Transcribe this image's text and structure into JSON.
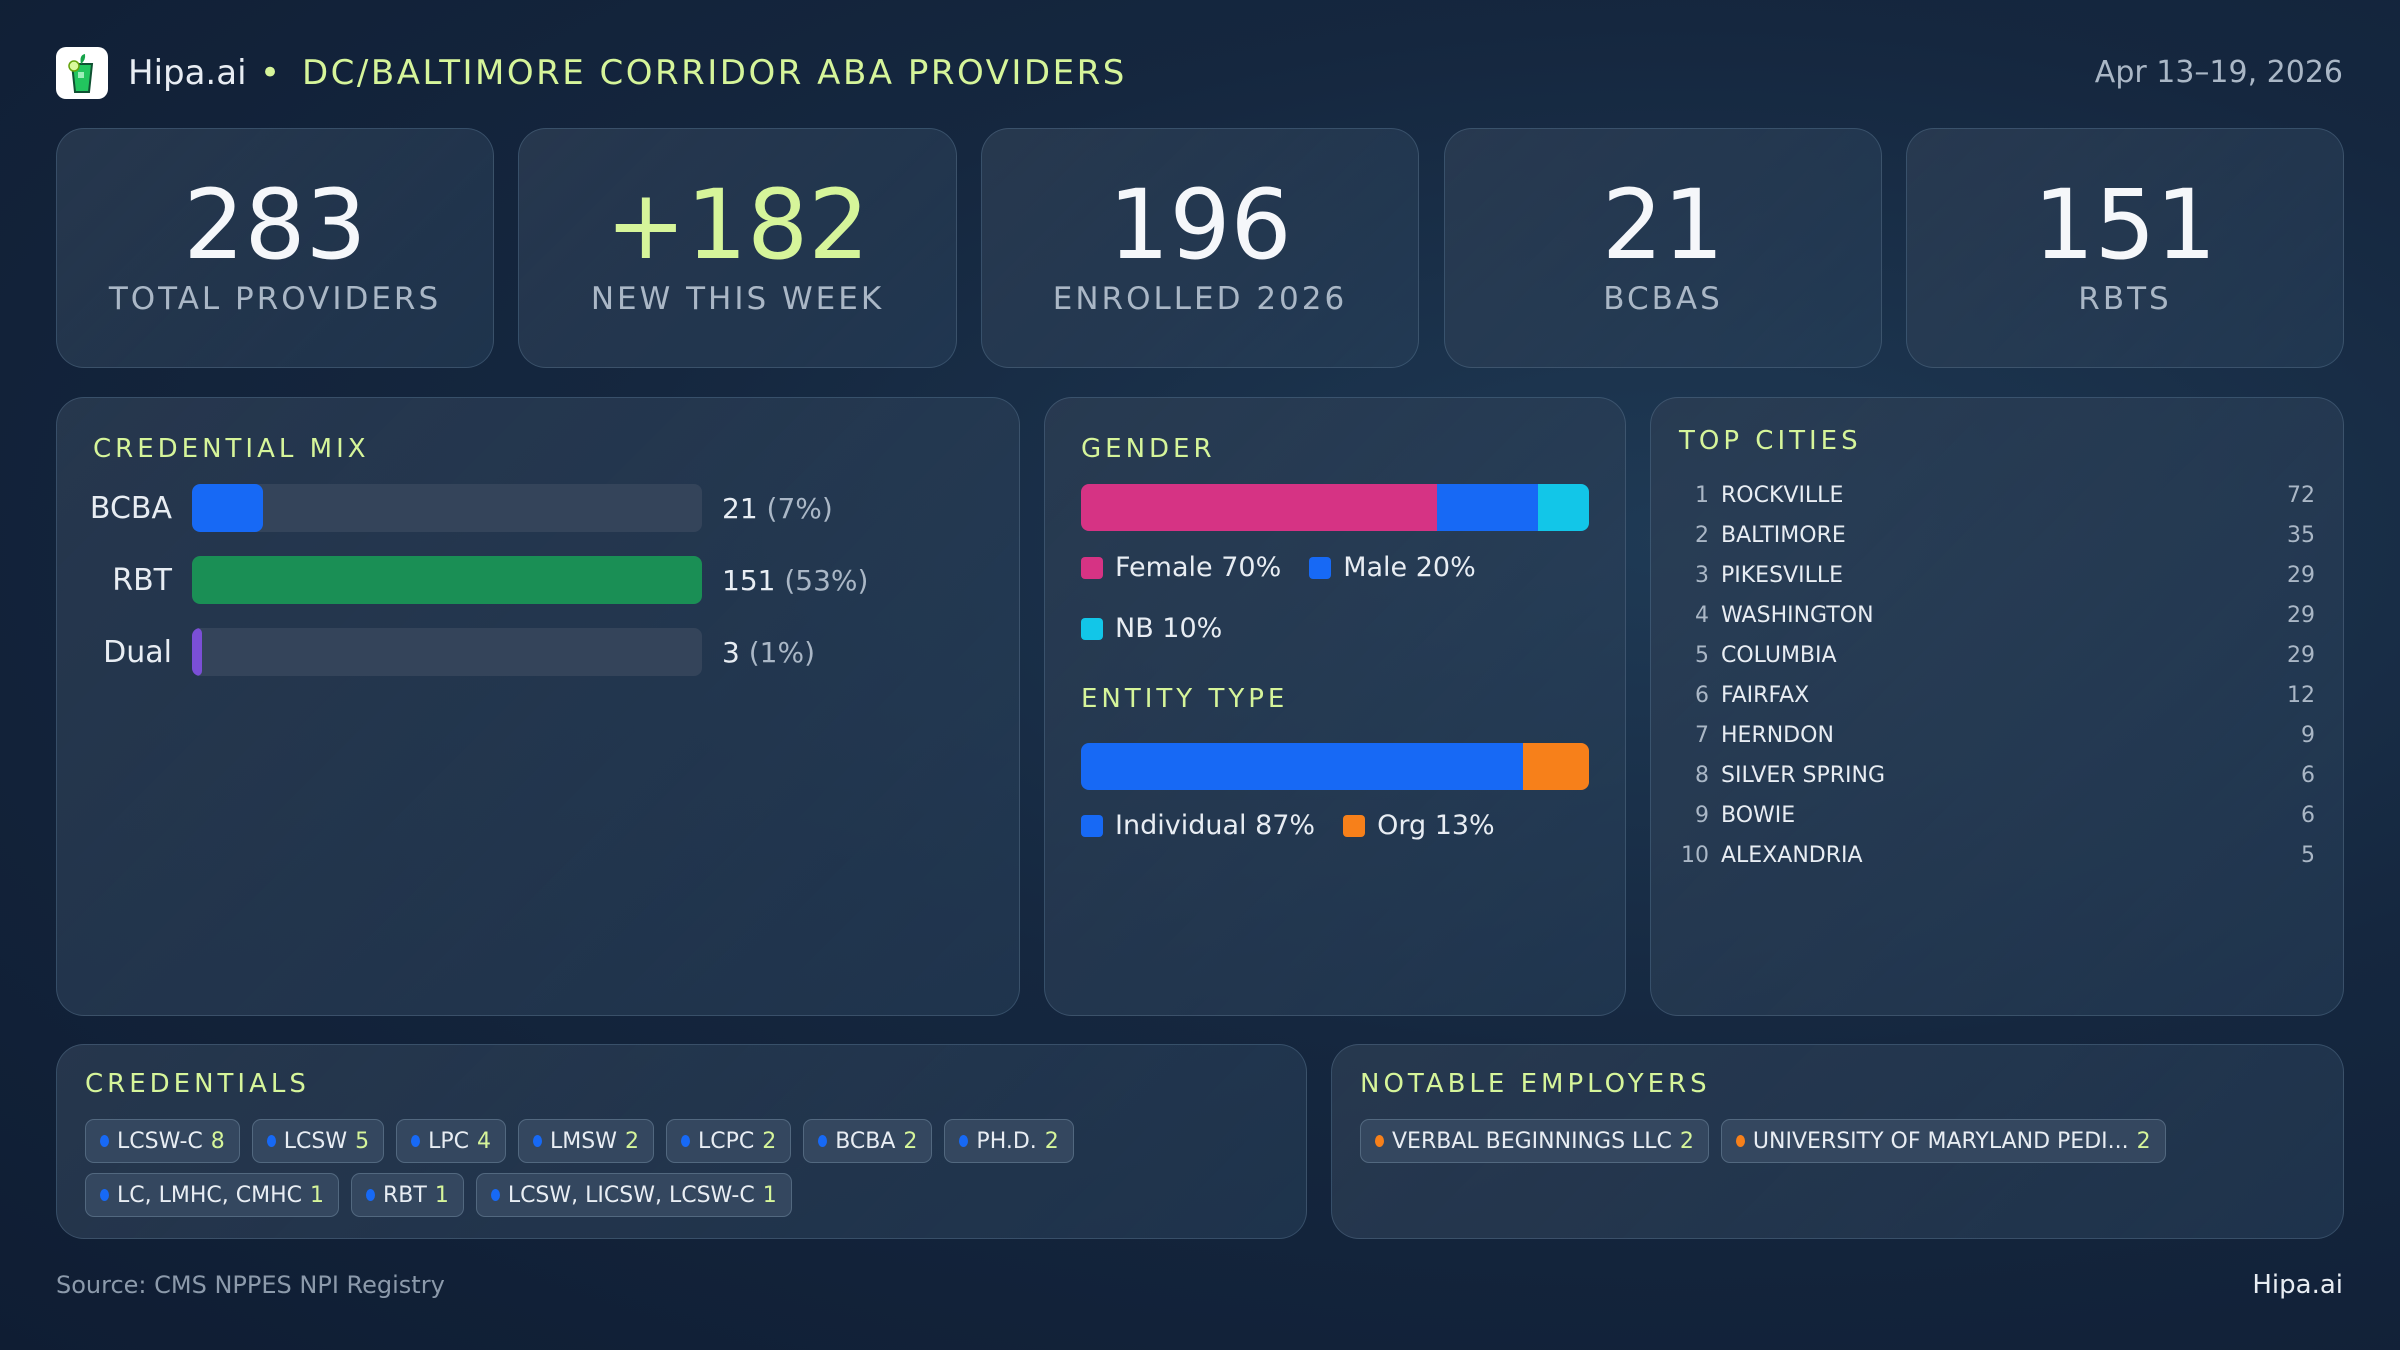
{
  "header": {
    "brand": "Hipa.ai",
    "separator": "•",
    "title": "DC/BALTIMORE CORRIDOR ABA PROVIDERS",
    "date_range": "Apr 13–19, 2026",
    "logo_icon": "mojito-glass-icon"
  },
  "kpis": [
    {
      "value": "283",
      "label": "TOTAL PROVIDERS"
    },
    {
      "value": "+182",
      "label": "NEW THIS WEEK"
    },
    {
      "value": "196",
      "label": "ENROLLED 2026"
    },
    {
      "value": "21",
      "label": "BCBAS"
    },
    {
      "value": "151",
      "label": "RBTS"
    }
  ],
  "credential_mix": {
    "title": "CREDENTIAL MIX",
    "rows": [
      {
        "label": "BCBA",
        "count": "21",
        "pct": "(7%)",
        "fraction": 0.14,
        "color": "#1769f5"
      },
      {
        "label": "RBT",
        "count": "151",
        "pct": "(53%)",
        "fraction": 1.0,
        "color": "#1a8f55"
      },
      {
        "label": "Dual",
        "count": "3",
        "pct": "(1%)",
        "fraction": 0.02,
        "color": "#7b4fd6"
      }
    ]
  },
  "gender": {
    "title": "GENDER",
    "segments": [
      {
        "label": "Female 70%",
        "value": 70,
        "color": "#d63384"
      },
      {
        "label": "Male 20%",
        "value": 20,
        "color": "#1769f5"
      },
      {
        "label": "NB 10%",
        "value": 10,
        "color": "#12c6e8"
      }
    ]
  },
  "entity_type": {
    "title": "ENTITY TYPE",
    "segments": [
      {
        "label": "Individual 87%",
        "value": 87,
        "color": "#1769f5"
      },
      {
        "label": "Org 13%",
        "value": 13,
        "color": "#f7801a"
      }
    ]
  },
  "top_cities": {
    "title": "TOP CITIES",
    "rows": [
      {
        "rank": "1",
        "name": "ROCKVILLE",
        "count": "72"
      },
      {
        "rank": "2",
        "name": "BALTIMORE",
        "count": "35"
      },
      {
        "rank": "3",
        "name": "PIKESVILLE",
        "count": "29"
      },
      {
        "rank": "4",
        "name": "WASHINGTON",
        "count": "29"
      },
      {
        "rank": "5",
        "name": "COLUMBIA",
        "count": "29"
      },
      {
        "rank": "6",
        "name": "FAIRFAX",
        "count": "12"
      },
      {
        "rank": "7",
        "name": "HERNDON",
        "count": "9"
      },
      {
        "rank": "8",
        "name": "SILVER SPRING",
        "count": "6"
      },
      {
        "rank": "9",
        "name": "BOWIE",
        "count": "6"
      },
      {
        "rank": "10",
        "name": "ALEXANDRIA",
        "count": "5"
      }
    ]
  },
  "credentials": {
    "title": "CREDENTIALS",
    "dot_color": "#1769f5",
    "chips": [
      {
        "label": "LCSW-C",
        "count": "8"
      },
      {
        "label": "LCSW",
        "count": "5"
      },
      {
        "label": "LPC",
        "count": "4"
      },
      {
        "label": "LMSW",
        "count": "2"
      },
      {
        "label": "LCPC",
        "count": "2"
      },
      {
        "label": "BCBA",
        "count": "2"
      },
      {
        "label": "PH.D.",
        "count": "2"
      },
      {
        "label": "LC, LMHC, CMHC",
        "count": "1"
      },
      {
        "label": "RBT",
        "count": "1"
      },
      {
        "label": "LCSW, LICSW, LCSW-C",
        "count": "1"
      }
    ]
  },
  "employers": {
    "title": "NOTABLE EMPLOYERS",
    "dot_color": "#f7801a",
    "chips": [
      {
        "label": "VERBAL BEGINNINGS LLC",
        "count": "2"
      },
      {
        "label": "UNIVERSITY OF MARYLAND PEDI...",
        "count": "2"
      }
    ]
  },
  "footer": {
    "source": "Source: CMS NPPES NPI Registry",
    "brand": "Hipa.ai"
  }
}
